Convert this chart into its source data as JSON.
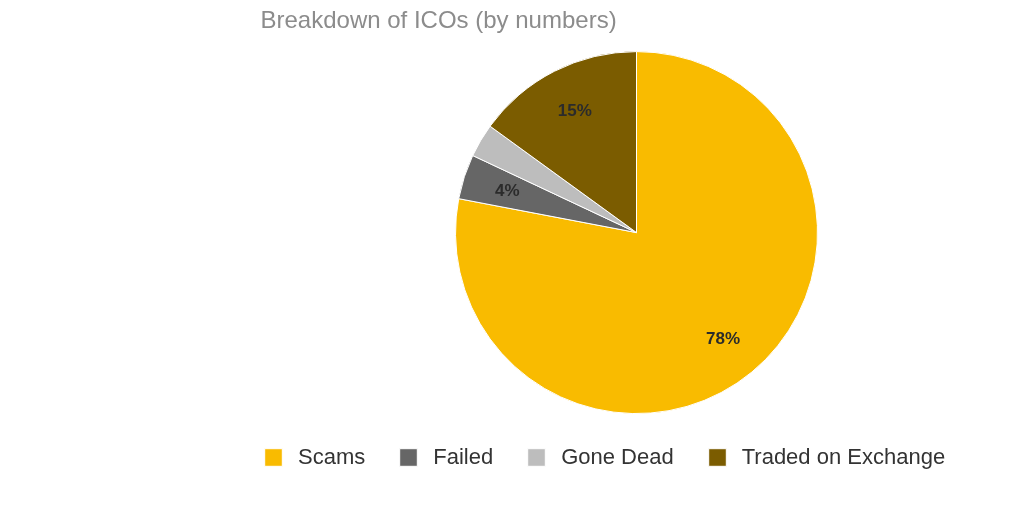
{
  "chart_data": {
    "type": "pie",
    "title": "Breakdown of ICOs (by numbers)",
    "categories": [
      "Scams",
      "Failed",
      "Gone Dead",
      "Traded on Exchange"
    ],
    "values": [
      78,
      4,
      3,
      15
    ],
    "colors": [
      "#f9bb00",
      "#666666",
      "#bdbdbd",
      "#7b5c00"
    ],
    "value_labels": [
      "78%",
      "4%",
      null,
      "15%"
    ],
    "legend": "bottom"
  }
}
